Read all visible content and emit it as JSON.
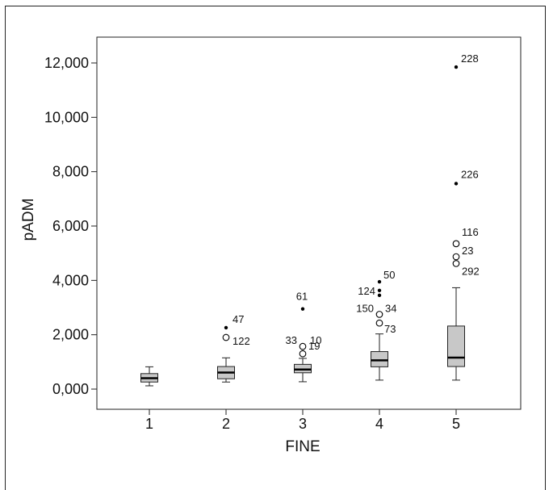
{
  "chart_data": {
    "type": "boxplot",
    "xlabel": "FINE",
    "ylabel": "pADM",
    "ylim": [
      -700,
      12700
    ],
    "yticks": [
      0,
      2000,
      4000,
      6000,
      8000,
      10000,
      12000
    ],
    "ytick_labels": [
      "0,000",
      "2,000",
      "4,000",
      "6,000",
      "8,000",
      "10,000",
      "12,000"
    ],
    "categories": [
      "1",
      "2",
      "3",
      "4",
      "5"
    ],
    "box_fill": "#c8c8c8",
    "boxes": [
      {
        "category": "1",
        "whisker_low": 120,
        "q1": 260,
        "median": 400,
        "q3": 570,
        "whisker_high": 820,
        "outliers": []
      },
      {
        "category": "2",
        "whisker_low": 260,
        "q1": 380,
        "median": 610,
        "q3": 830,
        "whisker_high": 1150,
        "outliers": [
          {
            "value": 2260,
            "kind": "extreme",
            "label": "47"
          },
          {
            "value": 1900,
            "kind": "mild",
            "label": "122"
          }
        ]
      },
      {
        "category": "3",
        "whisker_low": 270,
        "q1": 600,
        "median": 720,
        "q3": 910,
        "whisker_high": 1130,
        "outliers": [
          {
            "value": 2950,
            "kind": "extreme",
            "label": "61"
          },
          {
            "value": 1570,
            "kind": "mild",
            "label": "33"
          },
          {
            "value": 1570,
            "kind": "mild",
            "label": "10"
          },
          {
            "value": 1300,
            "kind": "mild",
            "label": "19"
          }
        ]
      },
      {
        "category": "4",
        "whisker_low": 330,
        "q1": 820,
        "median": 1060,
        "q3": 1380,
        "whisker_high": 2030,
        "outliers": [
          {
            "value": 3950,
            "kind": "extreme",
            "label": "50"
          },
          {
            "value": 3630,
            "kind": "extreme",
            "label": "124"
          },
          {
            "value": 3450,
            "kind": "extreme",
            "label": ""
          },
          {
            "value": 2750,
            "kind": "mild",
            "label": "150"
          },
          {
            "value": 2750,
            "kind": "mild",
            "label": "34"
          },
          {
            "value": 2430,
            "kind": "mild",
            "label": "73"
          }
        ]
      },
      {
        "category": "5",
        "whisker_low": 330,
        "q1": 830,
        "median": 1160,
        "q3": 2320,
        "whisker_high": 3730,
        "outliers": [
          {
            "value": 11850,
            "kind": "extreme",
            "label": "228"
          },
          {
            "value": 7560,
            "kind": "extreme",
            "label": "226"
          },
          {
            "value": 5350,
            "kind": "mild",
            "label": "116"
          },
          {
            "value": 4870,
            "kind": "mild",
            "label": "23"
          },
          {
            "value": 4620,
            "kind": "mild",
            "label": "292"
          }
        ]
      }
    ]
  }
}
